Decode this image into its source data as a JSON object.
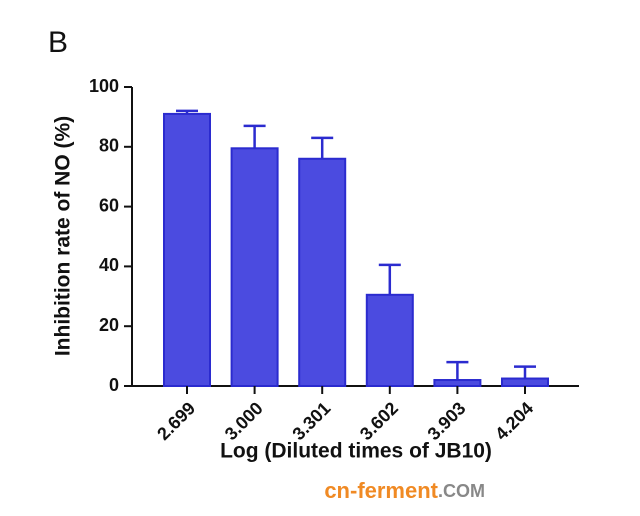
{
  "chart_data": {
    "type": "bar",
    "panel_label": "B",
    "ylabel": "Inhibition rate of NO (%)",
    "xlabel": "Log (Diluted times of JB10)",
    "categories": [
      "2.699",
      "3.000",
      "3.301",
      "3.602",
      "3.903",
      "4.204"
    ],
    "values": [
      91,
      79.5,
      76,
      30.5,
      2,
      2.5
    ],
    "errors": [
      1,
      7.5,
      7,
      10,
      6,
      4
    ],
    "color": "#4b4be0",
    "edge_color": "#2b2bcf",
    "ylim": [
      0,
      100
    ],
    "yticks": [
      0,
      20,
      40,
      60,
      80,
      100
    ],
    "watermark": [
      "cn-ferment",
      ".COM"
    ]
  }
}
